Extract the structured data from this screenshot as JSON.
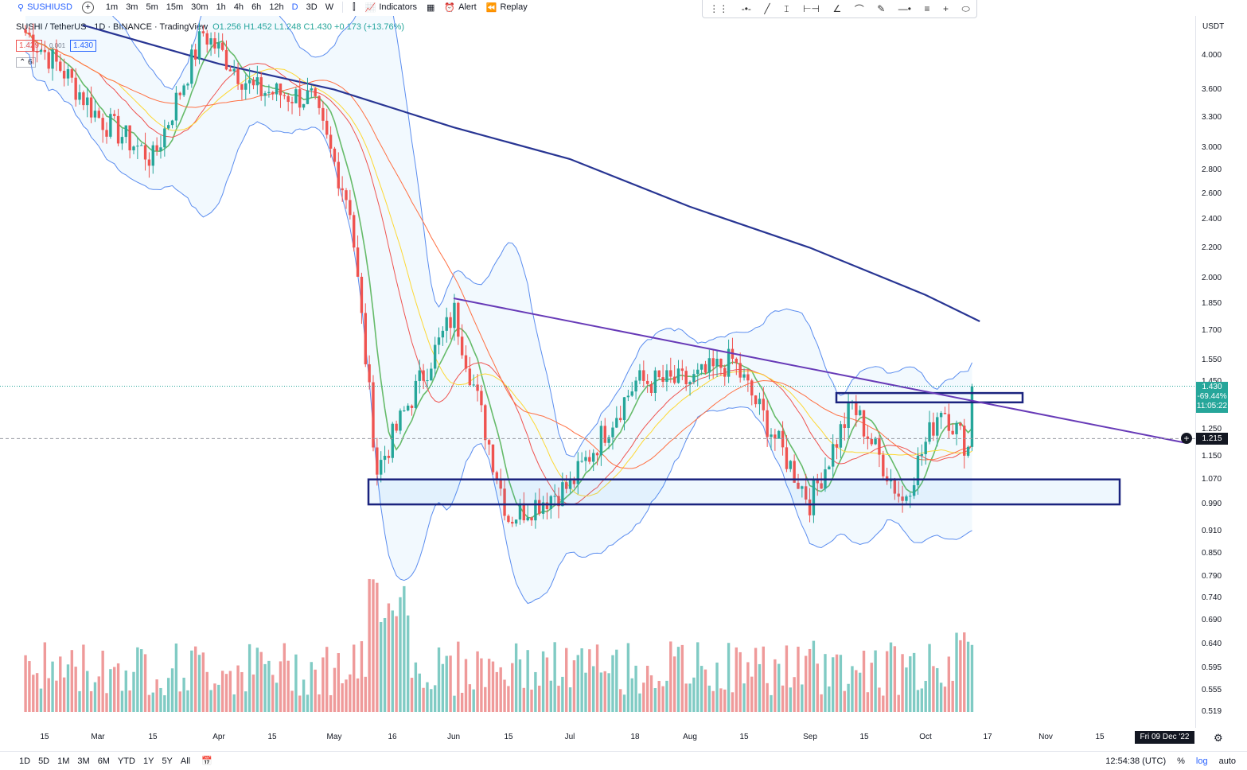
{
  "toolbar": {
    "symbol": "SUSHIUSD",
    "timeframes": [
      "1m",
      "3m",
      "5m",
      "15m",
      "30m",
      "1h",
      "4h",
      "6h",
      "12h",
      "D",
      "3D",
      "W"
    ],
    "active_timeframe": "D",
    "indicators_label": "Indicators",
    "alert_label": "Alert",
    "replay_label": "Replay"
  },
  "legend": {
    "pair": "SUSHI / TetherUS · 1D · BINANCE · TradingView",
    "open": "O1.256",
    "high": "H1.452",
    "low": "L1.248",
    "close": "C1.430",
    "change": "+0.173 (+13.76%)",
    "sell_price": "1.429",
    "spread": "0.001",
    "buy_price": "1.430",
    "indicator_count": "6"
  },
  "axis": {
    "currency": "USDT",
    "price_ticks": [
      4.0,
      3.6,
      3.3,
      3.0,
      2.8,
      2.6,
      2.4,
      2.2,
      2.0,
      1.85,
      1.7,
      1.55,
      1.45,
      1.25,
      1.15,
      1.07,
      0.99,
      0.91,
      0.85,
      0.79,
      0.74,
      0.69,
      0.64,
      0.595,
      0.555,
      0.519
    ],
    "current_price": "1.430",
    "change_pct": "-69.44%",
    "countdown": "11:05:22",
    "crosshair_price": "1.215",
    "time_labels": [
      {
        "t": "15",
        "x": 56
      },
      {
        "t": "Mar",
        "x": 123
      },
      {
        "t": "15",
        "x": 192
      },
      {
        "t": "Apr",
        "x": 275
      },
      {
        "t": "15",
        "x": 342
      },
      {
        "t": "May",
        "x": 420
      },
      {
        "t": "16",
        "x": 493
      },
      {
        "t": "Jun",
        "x": 570
      },
      {
        "t": "15",
        "x": 639
      },
      {
        "t": "Jul",
        "x": 716
      },
      {
        "t": "18",
        "x": 798
      },
      {
        "t": "Aug",
        "x": 867
      },
      {
        "t": "15",
        "x": 935
      },
      {
        "t": "Sep",
        "x": 1018
      },
      {
        "t": "15",
        "x": 1086
      },
      {
        "t": "Oct",
        "x": 1163
      },
      {
        "t": "17",
        "x": 1241
      },
      {
        "t": "Nov",
        "x": 1314
      },
      {
        "t": "15",
        "x": 1382
      }
    ],
    "crosshair_date": "Fri 09 Dec '22"
  },
  "chart_data": {
    "type": "candlestick",
    "title": "SUSHI / TetherUS · 1D · BINANCE",
    "scale": "log",
    "ylim": [
      0.5,
      4.2
    ],
    "price_series_approx": [
      {
        "date": "2022-02-10",
        "close": 4.3
      },
      {
        "date": "2022-02-20",
        "close": 3.8
      },
      {
        "date": "2022-03-01",
        "close": 3.3
      },
      {
        "date": "2022-03-15",
        "close": 2.9
      },
      {
        "date": "2022-03-28",
        "close": 4.3
      },
      {
        "date": "2022-04-10",
        "close": 3.6
      },
      {
        "date": "2022-04-25",
        "close": 3.5
      },
      {
        "date": "2022-05-05",
        "close": 2.5
      },
      {
        "date": "2022-05-12",
        "close": 1.1
      },
      {
        "date": "2022-05-20",
        "close": 1.35
      },
      {
        "date": "2022-06-01",
        "close": 1.8
      },
      {
        "date": "2022-06-15",
        "close": 0.95
      },
      {
        "date": "2022-07-01",
        "close": 1.05
      },
      {
        "date": "2022-07-18",
        "close": 1.45
      },
      {
        "date": "2022-08-01",
        "close": 1.45
      },
      {
        "date": "2022-08-12",
        "close": 1.55
      },
      {
        "date": "2022-09-01",
        "close": 1.0
      },
      {
        "date": "2022-09-12",
        "close": 1.35
      },
      {
        "date": "2022-09-25",
        "close": 1.0
      },
      {
        "date": "2022-10-05",
        "close": 1.35
      },
      {
        "date": "2022-10-12",
        "close": 1.18
      },
      {
        "date": "2022-10-13",
        "close": 1.43
      }
    ],
    "annotations": {
      "support_zone": [
        0.99,
        1.07
      ],
      "resistance_zone": [
        1.36,
        1.4
      ],
      "descending_trendline": {
        "from": {
          "date": "2022-06-01",
          "price": 1.88
        },
        "to": {
          "date": "2022-12-09",
          "price": 1.2
        }
      }
    },
    "volume_up_color": "#80cbc4",
    "volume_down_color": "#ef9a9a"
  },
  "colors": {
    "up": "#26a69a",
    "down": "#ef5350",
    "trendline": "#673ab7",
    "zone_border": "#1a237e",
    "ma_long": "#283593",
    "bb": "#5b8def"
  },
  "bottombar": {
    "ranges": [
      "1D",
      "5D",
      "1M",
      "3M",
      "6M",
      "YTD",
      "1Y",
      "5Y",
      "All"
    ],
    "clock": "12:54:38 (UTC)",
    "pct": "%",
    "log": "log",
    "auto": "auto"
  }
}
